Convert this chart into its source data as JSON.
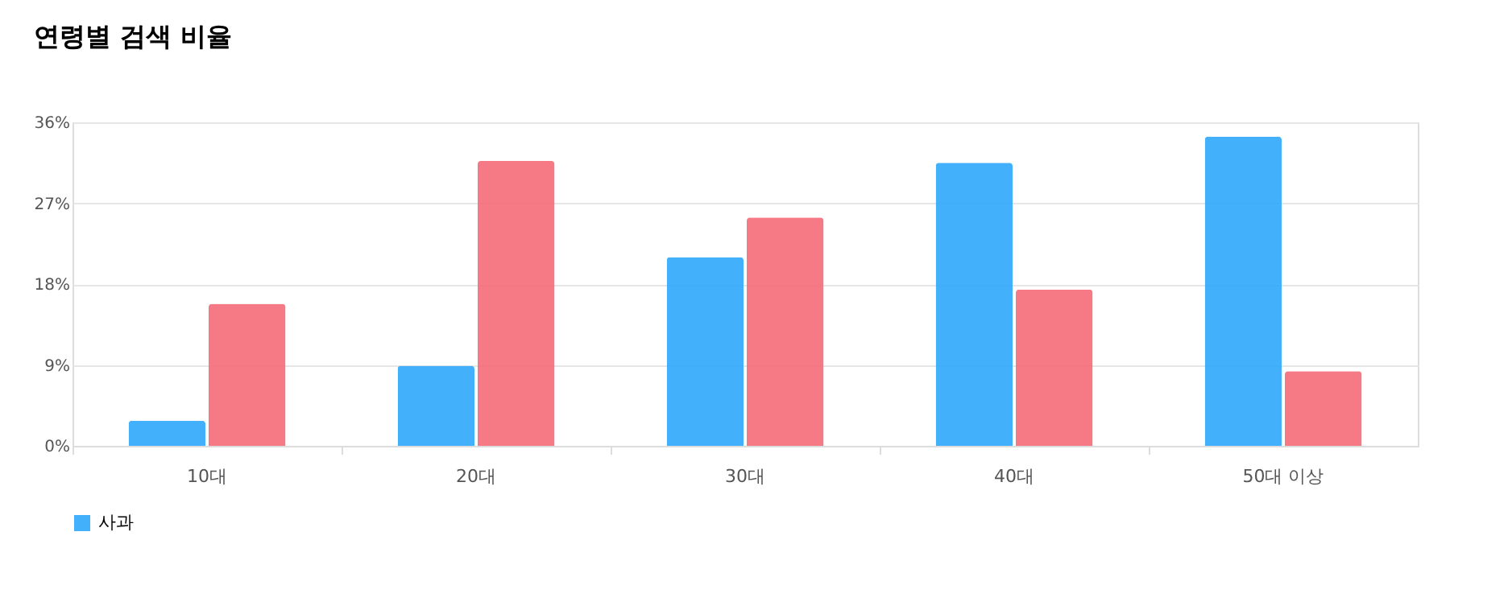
{
  "chart_data": {
    "type": "bar",
    "title": "연령별 검색 비율",
    "categories": [
      "10대",
      "20대",
      "30대",
      "40대",
      "50대 이상"
    ],
    "series": [
      {
        "name": "사과",
        "color": "#2ea7fb",
        "values": [
          2.8,
          8.9,
          21.0,
          31.5,
          34.4
        ]
      },
      {
        "color": "#f56a79",
        "values": [
          15.8,
          31.7,
          25.4,
          17.4,
          8.3
        ]
      }
    ],
    "ylim": [
      0,
      36
    ],
    "yticks": [
      {
        "value": 0,
        "label": "0%"
      },
      {
        "value": 9,
        "label": "9%"
      },
      {
        "value": 18,
        "label": "18%"
      },
      {
        "value": 27,
        "label": "27%"
      },
      {
        "value": 36,
        "label": "36%"
      }
    ],
    "grid": "y",
    "legend": "bottom"
  }
}
